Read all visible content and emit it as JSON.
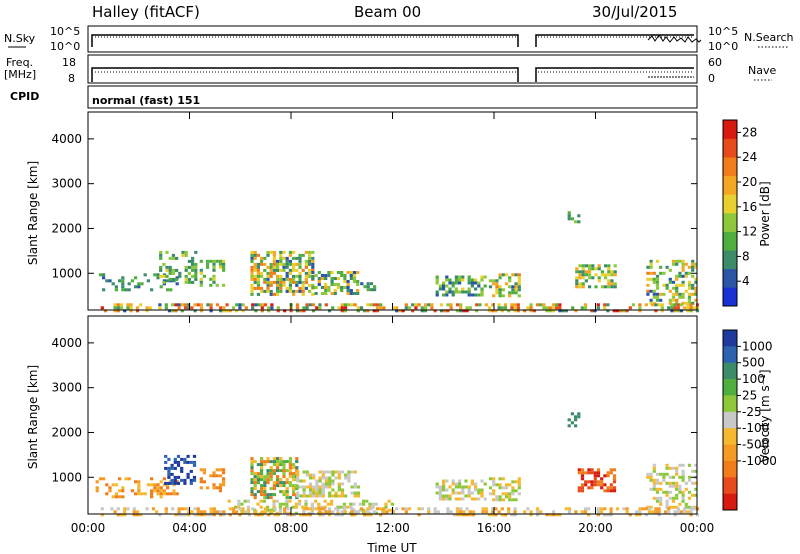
{
  "header": {
    "station": "Halley (fitACF)",
    "beam": "Beam 00",
    "date": "30/Jul/2015"
  },
  "panel_labels": {
    "nsky": "N.Sky",
    "nsearch": "N.Search",
    "freq_top": "Freq.",
    "freq_unit": "[MHz]",
    "nave": "Nave",
    "cpid": "CPID",
    "cpid_value": "normal (fast) 151",
    "nsky_left_ticks": [
      "10^5",
      "10^0"
    ],
    "nsearch_right_ticks": [
      "10^5",
      "10^0"
    ],
    "freq_ticks": [
      "18",
      "8"
    ],
    "nave_ticks": [
      "60",
      "0"
    ]
  },
  "colors": {
    "power": [
      "#1a2fd6",
      "#2a56a8",
      "#3c8c6a",
      "#4fae3e",
      "#8cc83a",
      "#e8d02e",
      "#f5a623",
      "#f07d1a",
      "#e84a1c",
      "#d7190f"
    ],
    "velocity": [
      "#1f3a9e",
      "#2d62b0",
      "#3c8c6a",
      "#4fae3e",
      "#8cc83a",
      "#c8c8c8",
      "#f5b82e",
      "#f59a23",
      "#f07d1a",
      "#e84a1c",
      "#d7190f"
    ]
  },
  "chart_data": [
    {
      "type": "heatmap",
      "name": "power",
      "xlabel": "",
      "ylabel": "Slant Range [km]",
      "x_ticks": [
        "00:00",
        "04:00",
        "08:00",
        "12:00",
        "16:00",
        "20:00",
        "00:00"
      ],
      "x_range_hours": [
        0,
        24
      ],
      "y_ticks": [
        1000,
        2000,
        3000,
        4000
      ],
      "ylim": [
        180,
        4600
      ],
      "colorbar_label": "Power [dB]",
      "colorbar_ticks": [
        4,
        8,
        12,
        16,
        20,
        24,
        28
      ],
      "colorbar_range": [
        0,
        30
      ],
      "regions": [
        {
          "t0": 0.3,
          "t1": 3.8,
          "r0": 600,
          "r1": 1000,
          "v0": 4,
          "v1": 12,
          "density": 0.3
        },
        {
          "t0": 2.8,
          "t1": 4.2,
          "r0": 800,
          "r1": 1500,
          "v0": 6,
          "v1": 16,
          "density": 0.45
        },
        {
          "t0": 4.4,
          "t1": 5.3,
          "r0": 700,
          "r1": 1300,
          "v0": 6,
          "v1": 16,
          "density": 0.4
        },
        {
          "t0": 6.4,
          "t1": 8.8,
          "r0": 550,
          "r1": 1500,
          "v0": 4,
          "v1": 24,
          "density": 0.65
        },
        {
          "t0": 8.8,
          "t1": 10.6,
          "r0": 550,
          "r1": 1050,
          "v0": 4,
          "v1": 20,
          "density": 0.55
        },
        {
          "t0": 10.6,
          "t1": 11.4,
          "r0": 600,
          "r1": 800,
          "v0": 4,
          "v1": 10,
          "density": 0.35
        },
        {
          "t0": 13.7,
          "t1": 15.7,
          "r0": 500,
          "r1": 950,
          "v0": 4,
          "v1": 16,
          "density": 0.55
        },
        {
          "t0": 15.8,
          "t1": 17.0,
          "r0": 500,
          "r1": 1000,
          "v0": 4,
          "v1": 22,
          "density": 0.6
        },
        {
          "t0": 19.2,
          "t1": 20.8,
          "r0": 700,
          "r1": 1200,
          "v0": 6,
          "v1": 20,
          "density": 0.5
        },
        {
          "t0": 18.9,
          "t1": 19.3,
          "r0": 2150,
          "r1": 2450,
          "v0": 4,
          "v1": 14,
          "density": 0.4
        },
        {
          "t0": 22.0,
          "t1": 24.0,
          "r0": 300,
          "r1": 1300,
          "v0": 4,
          "v1": 22,
          "density": 0.45
        },
        {
          "t0": 0.5,
          "t1": 24.0,
          "r0": 190,
          "r1": 330,
          "v0": 4,
          "v1": 28,
          "density": 0.5
        }
      ]
    },
    {
      "type": "heatmap",
      "name": "velocity",
      "xlabel": "Time UT",
      "ylabel": "Slant Range [km]",
      "x_ticks": [
        "00:00",
        "04:00",
        "08:00",
        "12:00",
        "16:00",
        "20:00",
        "00:00"
      ],
      "x_range_hours": [
        0,
        24
      ],
      "y_ticks": [
        1000,
        2000,
        3000,
        4000
      ],
      "ylim": [
        180,
        4600
      ],
      "colorbar_label": "Velocity [m s⁻¹]",
      "colorbar_ticks": [
        "1000",
        "500",
        "100",
        "25",
        "-25",
        "-100",
        "-500",
        "-1000"
      ],
      "regions": [
        {
          "t0": 0.3,
          "t1": 3.5,
          "r0": 550,
          "r1": 1000,
          "cls": [
            6,
            7,
            8
          ],
          "density": 0.35
        },
        {
          "t0": 3.0,
          "t1": 4.2,
          "r0": 850,
          "r1": 1500,
          "cls": [
            0,
            1
          ],
          "density": 0.45
        },
        {
          "t0": 4.4,
          "t1": 5.3,
          "r0": 700,
          "r1": 1200,
          "cls": [
            7,
            8
          ],
          "density": 0.35
        },
        {
          "t0": 6.4,
          "t1": 8.2,
          "r0": 550,
          "r1": 1450,
          "cls": [
            2,
            3,
            4,
            6,
            8
          ],
          "density": 0.65
        },
        {
          "t0": 8.2,
          "t1": 10.6,
          "r0": 550,
          "r1": 1150,
          "cls": [
            4,
            5,
            6
          ],
          "density": 0.6
        },
        {
          "t0": 5.5,
          "t1": 12.0,
          "r0": 200,
          "r1": 500,
          "cls": [
            4,
            5,
            6
          ],
          "density": 0.4
        },
        {
          "t0": 13.7,
          "t1": 15.7,
          "r0": 500,
          "r1": 950,
          "cls": [
            4,
            5,
            6
          ],
          "density": 0.55
        },
        {
          "t0": 15.8,
          "t1": 17.0,
          "r0": 500,
          "r1": 1000,
          "cls": [
            4,
            5,
            6
          ],
          "density": 0.55
        },
        {
          "t0": 19.3,
          "t1": 20.7,
          "r0": 700,
          "r1": 1200,
          "cls": [
            8,
            9,
            10
          ],
          "density": 0.55
        },
        {
          "t0": 18.9,
          "t1": 19.3,
          "r0": 2150,
          "r1": 2450,
          "cls": [
            2
          ],
          "density": 0.4
        },
        {
          "t0": 22.0,
          "t1": 24.0,
          "r0": 300,
          "r1": 1300,
          "cls": [
            4,
            5,
            6
          ],
          "density": 0.45
        },
        {
          "t0": 0.5,
          "t1": 24.0,
          "r0": 190,
          "r1": 330,
          "cls": [
            5,
            6,
            7
          ],
          "density": 0.45
        }
      ]
    }
  ]
}
